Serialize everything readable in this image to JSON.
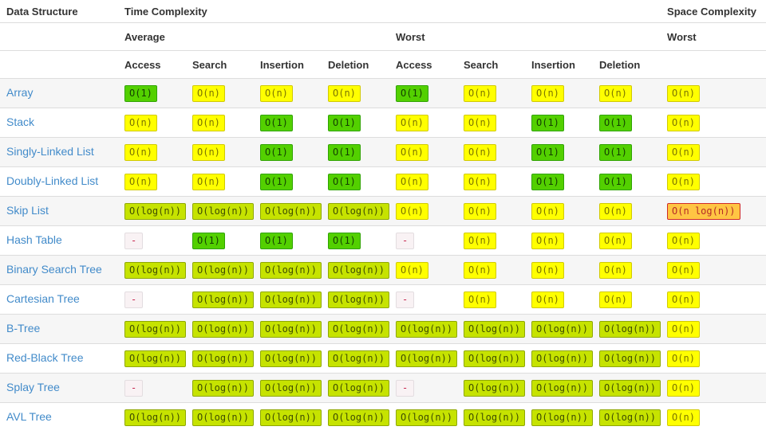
{
  "colors": {
    "link": "#428bca",
    "header_text": "#333333",
    "row_stripe": "#f6f6f6",
    "row_divider": "#dddddd",
    "excellent_bg": "#53d000",
    "good_bg": "#c6e300",
    "fair_bg": "#ffff00",
    "bad_bg": "#ffc543",
    "na_bg": "#f9f2f4",
    "na_text": "#c7254e"
  },
  "table": {
    "header": {
      "col1": "Data Structure",
      "time": "Time Complexity",
      "space": "Space Complexity",
      "average": "Average",
      "worst": "Worst",
      "space_worst": "Worst",
      "ops": [
        "Access",
        "Search",
        "Insertion",
        "Deletion",
        "Access",
        "Search",
        "Insertion",
        "Deletion"
      ]
    },
    "rows": [
      {
        "name": "Array",
        "cells": [
          {
            "v": "O(1)",
            "c": "excellent"
          },
          {
            "v": "O(n)",
            "c": "fair"
          },
          {
            "v": "O(n)",
            "c": "fair"
          },
          {
            "v": "O(n)",
            "c": "fair"
          },
          {
            "v": "O(1)",
            "c": "excellent"
          },
          {
            "v": "O(n)",
            "c": "fair"
          },
          {
            "v": "O(n)",
            "c": "fair"
          },
          {
            "v": "O(n)",
            "c": "fair"
          },
          {
            "v": "O(n)",
            "c": "fair"
          }
        ]
      },
      {
        "name": "Stack",
        "cells": [
          {
            "v": "O(n)",
            "c": "fair"
          },
          {
            "v": "O(n)",
            "c": "fair"
          },
          {
            "v": "O(1)",
            "c": "excellent"
          },
          {
            "v": "O(1)",
            "c": "excellent"
          },
          {
            "v": "O(n)",
            "c": "fair"
          },
          {
            "v": "O(n)",
            "c": "fair"
          },
          {
            "v": "O(1)",
            "c": "excellent"
          },
          {
            "v": "O(1)",
            "c": "excellent"
          },
          {
            "v": "O(n)",
            "c": "fair"
          }
        ]
      },
      {
        "name": "Singly-Linked List",
        "cells": [
          {
            "v": "O(n)",
            "c": "fair"
          },
          {
            "v": "O(n)",
            "c": "fair"
          },
          {
            "v": "O(1)",
            "c": "excellent"
          },
          {
            "v": "O(1)",
            "c": "excellent"
          },
          {
            "v": "O(n)",
            "c": "fair"
          },
          {
            "v": "O(n)",
            "c": "fair"
          },
          {
            "v": "O(1)",
            "c": "excellent"
          },
          {
            "v": "O(1)",
            "c": "excellent"
          },
          {
            "v": "O(n)",
            "c": "fair"
          }
        ]
      },
      {
        "name": "Doubly-Linked List",
        "cells": [
          {
            "v": "O(n)",
            "c": "fair"
          },
          {
            "v": "O(n)",
            "c": "fair"
          },
          {
            "v": "O(1)",
            "c": "excellent"
          },
          {
            "v": "O(1)",
            "c": "excellent"
          },
          {
            "v": "O(n)",
            "c": "fair"
          },
          {
            "v": "O(n)",
            "c": "fair"
          },
          {
            "v": "O(1)",
            "c": "excellent"
          },
          {
            "v": "O(1)",
            "c": "excellent"
          },
          {
            "v": "O(n)",
            "c": "fair"
          }
        ]
      },
      {
        "name": "Skip List",
        "cells": [
          {
            "v": "O(log(n))",
            "c": "good"
          },
          {
            "v": "O(log(n))",
            "c": "good"
          },
          {
            "v": "O(log(n))",
            "c": "good"
          },
          {
            "v": "O(log(n))",
            "c": "good"
          },
          {
            "v": "O(n)",
            "c": "fair"
          },
          {
            "v": "O(n)",
            "c": "fair"
          },
          {
            "v": "O(n)",
            "c": "fair"
          },
          {
            "v": "O(n)",
            "c": "fair"
          },
          {
            "v": "O(n log(n))",
            "c": "bad"
          }
        ]
      },
      {
        "name": "Hash Table",
        "cells": [
          {
            "v": "-",
            "c": "na"
          },
          {
            "v": "O(1)",
            "c": "excellent"
          },
          {
            "v": "O(1)",
            "c": "excellent"
          },
          {
            "v": "O(1)",
            "c": "excellent"
          },
          {
            "v": "-",
            "c": "na"
          },
          {
            "v": "O(n)",
            "c": "fair"
          },
          {
            "v": "O(n)",
            "c": "fair"
          },
          {
            "v": "O(n)",
            "c": "fair"
          },
          {
            "v": "O(n)",
            "c": "fair"
          }
        ]
      },
      {
        "name": "Binary Search Tree",
        "cells": [
          {
            "v": "O(log(n))",
            "c": "good"
          },
          {
            "v": "O(log(n))",
            "c": "good"
          },
          {
            "v": "O(log(n))",
            "c": "good"
          },
          {
            "v": "O(log(n))",
            "c": "good"
          },
          {
            "v": "O(n)",
            "c": "fair"
          },
          {
            "v": "O(n)",
            "c": "fair"
          },
          {
            "v": "O(n)",
            "c": "fair"
          },
          {
            "v": "O(n)",
            "c": "fair"
          },
          {
            "v": "O(n)",
            "c": "fair"
          }
        ]
      },
      {
        "name": "Cartesian Tree",
        "cells": [
          {
            "v": "-",
            "c": "na"
          },
          {
            "v": "O(log(n))",
            "c": "good"
          },
          {
            "v": "O(log(n))",
            "c": "good"
          },
          {
            "v": "O(log(n))",
            "c": "good"
          },
          {
            "v": "-",
            "c": "na"
          },
          {
            "v": "O(n)",
            "c": "fair"
          },
          {
            "v": "O(n)",
            "c": "fair"
          },
          {
            "v": "O(n)",
            "c": "fair"
          },
          {
            "v": "O(n)",
            "c": "fair"
          }
        ]
      },
      {
        "name": "B-Tree",
        "cells": [
          {
            "v": "O(log(n))",
            "c": "good"
          },
          {
            "v": "O(log(n))",
            "c": "good"
          },
          {
            "v": "O(log(n))",
            "c": "good"
          },
          {
            "v": "O(log(n))",
            "c": "good"
          },
          {
            "v": "O(log(n))",
            "c": "good"
          },
          {
            "v": "O(log(n))",
            "c": "good"
          },
          {
            "v": "O(log(n))",
            "c": "good"
          },
          {
            "v": "O(log(n))",
            "c": "good"
          },
          {
            "v": "O(n)",
            "c": "fair"
          }
        ]
      },
      {
        "name": "Red-Black Tree",
        "cells": [
          {
            "v": "O(log(n))",
            "c": "good"
          },
          {
            "v": "O(log(n))",
            "c": "good"
          },
          {
            "v": "O(log(n))",
            "c": "good"
          },
          {
            "v": "O(log(n))",
            "c": "good"
          },
          {
            "v": "O(log(n))",
            "c": "good"
          },
          {
            "v": "O(log(n))",
            "c": "good"
          },
          {
            "v": "O(log(n))",
            "c": "good"
          },
          {
            "v": "O(log(n))",
            "c": "good"
          },
          {
            "v": "O(n)",
            "c": "fair"
          }
        ]
      },
      {
        "name": "Splay Tree",
        "cells": [
          {
            "v": "-",
            "c": "na"
          },
          {
            "v": "O(log(n))",
            "c": "good"
          },
          {
            "v": "O(log(n))",
            "c": "good"
          },
          {
            "v": "O(log(n))",
            "c": "good"
          },
          {
            "v": "-",
            "c": "na"
          },
          {
            "v": "O(log(n))",
            "c": "good"
          },
          {
            "v": "O(log(n))",
            "c": "good"
          },
          {
            "v": "O(log(n))",
            "c": "good"
          },
          {
            "v": "O(n)",
            "c": "fair"
          }
        ]
      },
      {
        "name": "AVL Tree",
        "cells": [
          {
            "v": "O(log(n))",
            "c": "good"
          },
          {
            "v": "O(log(n))",
            "c": "good"
          },
          {
            "v": "O(log(n))",
            "c": "good"
          },
          {
            "v": "O(log(n))",
            "c": "good"
          },
          {
            "v": "O(log(n))",
            "c": "good"
          },
          {
            "v": "O(log(n))",
            "c": "good"
          },
          {
            "v": "O(log(n))",
            "c": "good"
          },
          {
            "v": "O(log(n))",
            "c": "good"
          },
          {
            "v": "O(n)",
            "c": "fair"
          }
        ]
      }
    ]
  }
}
